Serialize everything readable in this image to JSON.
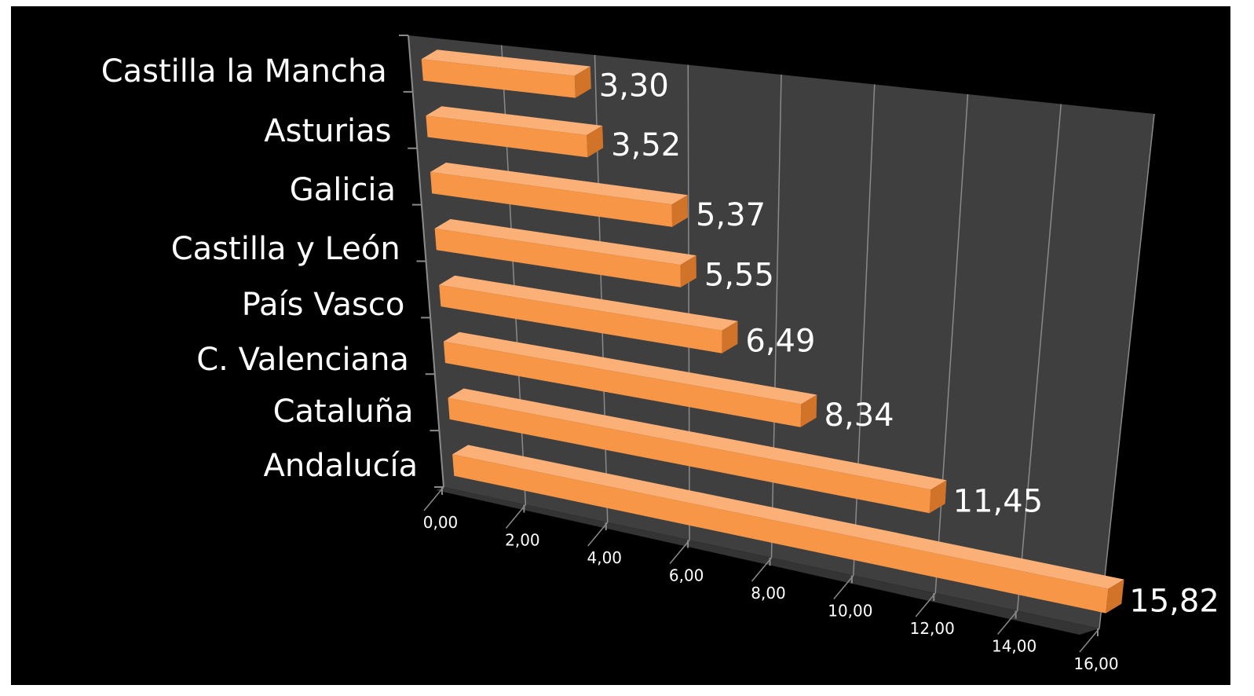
{
  "chart_data": {
    "type": "bar",
    "orientation": "horizontal",
    "style": "3d-perspective",
    "categories": [
      "Castilla la Mancha",
      "Asturias",
      "Galicia",
      "Castilla y León",
      "País Vasco",
      "C. Valenciana",
      "Cataluña",
      "Andalucía"
    ],
    "values": [
      3.3,
      3.52,
      5.37,
      5.55,
      6.49,
      8.34,
      11.45,
      15.82
    ],
    "value_labels": [
      "3,30",
      "3,52",
      "5,37",
      "5,55",
      "6,49",
      "8,34",
      "11,45",
      "15,82"
    ],
    "x_ticks": [
      "0,00",
      "2,00",
      "4,00",
      "6,00",
      "8,00",
      "10,00",
      "12,00",
      "14,00",
      "16,00"
    ],
    "xlim": [
      0,
      16
    ],
    "title": "",
    "xlabel": "",
    "ylabel": "",
    "grid": true,
    "legend": "none",
    "colors": {
      "background": "#000000",
      "wall": "#3f3f3f",
      "floor": "#343434",
      "bar_front": "#f79646",
      "bar_top": "#fbb077",
      "bar_side": "#d2732a",
      "gridline": "#8a8a8a",
      "text": "#ffffff"
    }
  }
}
